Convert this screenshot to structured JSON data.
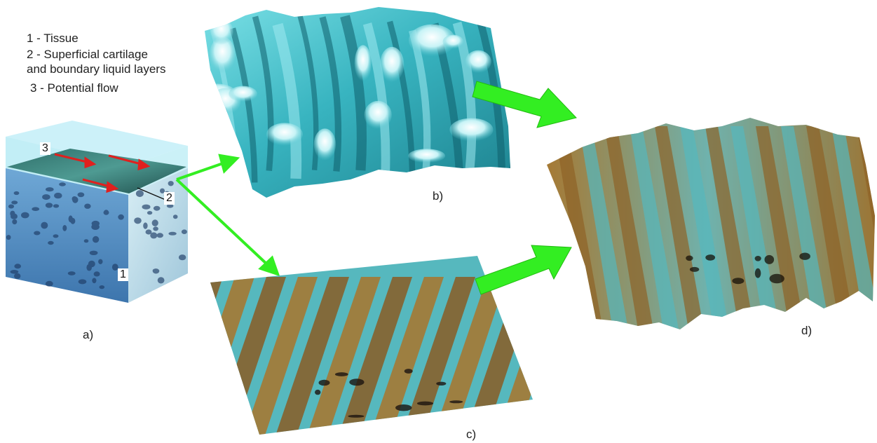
{
  "legend": {
    "items": [
      "1 - Tissue",
      "2 - Superficial cartilage\nand boundary liquid layers",
      "3 - Potential flow"
    ]
  },
  "panels": {
    "a": "a)",
    "b": "b)",
    "c": "c)",
    "d": "d)"
  },
  "cube_labels": {
    "tissue": "1",
    "superficial_layer": "2",
    "potential_flow": "3"
  },
  "colors": {
    "arrow_green": "#33ee22",
    "flow_arrow_red": "#e0201e",
    "cube_glass": "#9ee6f2",
    "cube_tissue": "#4a84b8",
    "surface_cyan": "#4ec9d6",
    "surface_brown": "#b2782a"
  }
}
